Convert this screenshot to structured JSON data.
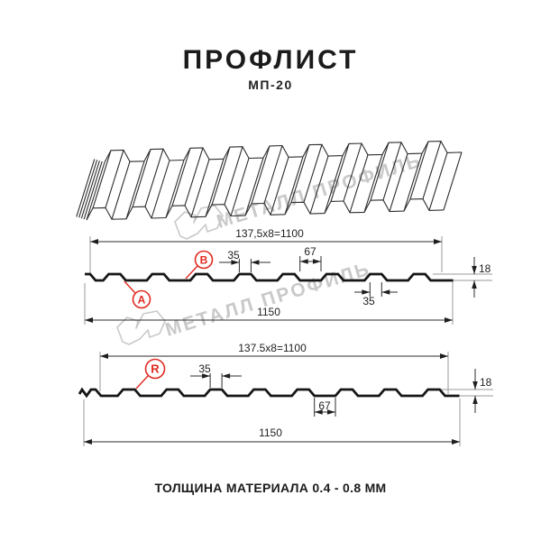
{
  "header": {
    "title": "ПРОФЛИСТ",
    "subtitle": "МП-20"
  },
  "footer": {
    "material_thickness": "ТОЛЩИНА МАТЕРИАЛА 0.4 - 0.8 ММ"
  },
  "watermark": {
    "brand": "МЕТАЛЛ ПРОФИЛЬ"
  },
  "colors": {
    "accent_red": "#e02920",
    "line_black": "#161616",
    "extension_gray": "#9a9a9a",
    "watermark_gray": "#c9c9c9"
  },
  "sections": {
    "front": {
      "pitch_formula": "137,5x8=1100",
      "overall_width": "1150",
      "rib_top_width": "35",
      "valley_width": "67",
      "profile_height": "18",
      "rib_bottom_width": "35",
      "label_a": "A",
      "label_b": "B"
    },
    "back": {
      "pitch_formula": "137.5x8=1100",
      "overall_width": "1150",
      "rib_top_width": "35",
      "valley_width": "67",
      "profile_height": "18",
      "label_r": "R"
    }
  }
}
